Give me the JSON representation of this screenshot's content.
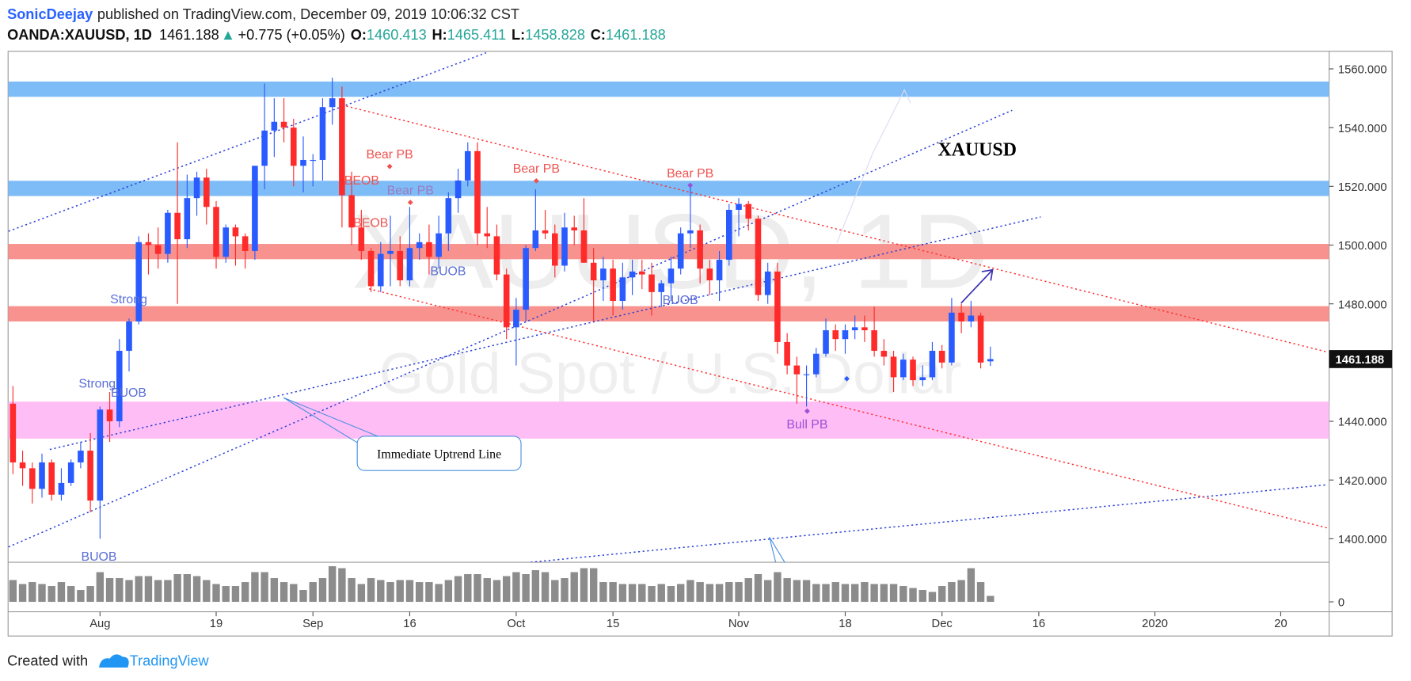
{
  "header": {
    "publisher": "SonicDeejay",
    "published": "published on TradingView.com, December 09, 2019 10:06:32 CST",
    "symbol": "OANDA:XAUUSD, 1D",
    "arrow": "▲",
    "change": "+0.775 (+0.05%)",
    "o": "O:",
    "h": "H:",
    "l": "L:",
    "c": "C:"
  },
  "footer": {
    "created": "Created with",
    "brand": "TradingView"
  },
  "chart_data": {
    "type": "candlestick",
    "watermark": "XAUUSD, 1D",
    "watermark_subtitle": "Gold Spot / U.S. Dollar",
    "up_color": "#2a5bff",
    "down_color": "#ff2a2a",
    "volume_color": "#8c8c8c",
    "open": [
      1446,
      1426,
      1424,
      1417,
      1426,
      1415,
      1419,
      1426,
      1430,
      1413,
      1444,
      1440,
      1464,
      1474,
      1501,
      1500,
      1497,
      1511,
      1502,
      1516,
      1523,
      1513,
      1496,
      1506,
      1503,
      1498,
      1527,
      1539,
      1542,
      1540,
      1527,
      1529,
      1529,
      1547,
      1550,
      1517,
      1506,
      1498,
      1486,
      1497,
      1498,
      1488,
      1499,
      1501,
      1496,
      1504,
      1516,
      1522,
      1532,
      1504,
      1503,
      1490,
      1472,
      1478,
      1499,
      1505,
      1504,
      1493,
      1506,
      1505,
      1494,
      1488,
      1492,
      1481,
      1489,
      1491,
      1490,
      1484,
      1487,
      1492,
      1504,
      1505,
      1492,
      1488,
      1495,
      1512,
      1514,
      1509,
      1483,
      1491,
      1467,
      1459,
      1456,
      1456,
      1463,
      1471,
      1468,
      1471,
      1472,
      1471,
      1464,
      1462,
      1455,
      1461,
      1454,
      1455,
      1464,
      1460,
      1477,
      1474,
      1476,
      1460.413
    ],
    "high": [
      1452,
      1430,
      1426,
      1429,
      1427,
      1424,
      1427,
      1433,
      1436,
      1445,
      1450,
      1468,
      1475,
      1503,
      1504,
      1506,
      1512,
      1535,
      1524,
      1525,
      1526,
      1515,
      1507,
      1507,
      1504,
      1527,
      1555,
      1550,
      1550,
      1543,
      1537,
      1531,
      1550,
      1557,
      1554,
      1525,
      1512,
      1499,
      1501,
      1510,
      1503,
      1513,
      1504,
      1507,
      1510,
      1518,
      1526,
      1535,
      1535,
      1513,
      1507,
      1492,
      1482,
      1500,
      1519,
      1512,
      1507,
      1511,
      1510,
      1516,
      1499,
      1496,
      1495,
      1494,
      1495,
      1495,
      1494,
      1488,
      1496,
      1506,
      1520,
      1507,
      1495,
      1498,
      1514,
      1516,
      1515,
      1510,
      1494,
      1494,
      1470,
      1462,
      1459,
      1465,
      1475,
      1473,
      1473,
      1476,
      1476,
      1479,
      1468,
      1464,
      1463,
      1462,
      1459,
      1467,
      1466,
      1482,
      1480,
      1481,
      1477,
      1465.411
    ],
    "low": [
      1422,
      1418,
      1412,
      1414,
      1413,
      1413,
      1418,
      1424,
      1409,
      1400,
      1433,
      1438,
      1457,
      1473,
      1490,
      1492,
      1494,
      1480,
      1499,
      1510,
      1507,
      1492,
      1494,
      1493,
      1492,
      1495,
      1519,
      1530,
      1535,
      1520,
      1518,
      1520,
      1522,
      1541,
      1506,
      1500,
      1495,
      1484,
      1484,
      1486,
      1486,
      1486,
      1495,
      1490,
      1492,
      1498,
      1511,
      1520,
      1500,
      1499,
      1488,
      1468,
      1459,
      1474,
      1498,
      1502,
      1489,
      1491,
      1500,
      1494,
      1474,
      1481,
      1476,
      1478,
      1483,
      1485,
      1476,
      1479,
      1481,
      1490,
      1499,
      1487,
      1483,
      1481,
      1493,
      1503,
      1505,
      1481,
      1480,
      1463,
      1456,
      1446,
      1445,
      1455,
      1462,
      1464,
      1463,
      1468,
      1467,
      1462,
      1459,
      1450,
      1454,
      1452,
      1452,
      1454,
      1458,
      1459,
      1470,
      1472,
      1458,
      1458.828
    ],
    "close": [
      1426,
      1424,
      1417,
      1426,
      1415,
      1419,
      1426,
      1430,
      1413,
      1444,
      1440,
      1464,
      1474,
      1501,
      1500,
      1497,
      1511,
      1502,
      1516,
      1523,
      1513,
      1496,
      1506,
      1503,
      1498,
      1527,
      1539,
      1542,
      1540,
      1527,
      1529,
      1529,
      1547,
      1550,
      1517,
      1506,
      1498,
      1486,
      1497,
      1498,
      1488,
      1499,
      1501,
      1496,
      1504,
      1516,
      1522,
      1532,
      1504,
      1503,
      1490,
      1472,
      1478,
      1499,
      1505,
      1504,
      1493,
      1506,
      1505,
      1494,
      1488,
      1492,
      1481,
      1489,
      1491,
      1490,
      1484,
      1487,
      1492,
      1504,
      1505,
      1492,
      1488,
      1495,
      1512,
      1514,
      1509,
      1483,
      1491,
      1467,
      1459,
      1456,
      1456,
      1463,
      1471,
      1468,
      1471,
      1472,
      1471,
      1464,
      1462,
      1455,
      1461,
      1454,
      1455,
      1464,
      1460,
      1477,
      1474,
      1476,
      1460,
      1461.188
    ],
    "volume": [
      55,
      45,
      50,
      45,
      40,
      50,
      40,
      30,
      40,
      75,
      60,
      60,
      55,
      65,
      65,
      55,
      55,
      70,
      70,
      65,
      55,
      45,
      40,
      40,
      50,
      75,
      75,
      60,
      50,
      45,
      30,
      50,
      60,
      90,
      85,
      60,
      45,
      60,
      55,
      50,
      55,
      55,
      50,
      50,
      45,
      55,
      65,
      70,
      70,
      60,
      55,
      65,
      75,
      70,
      80,
      75,
      55,
      60,
      75,
      85,
      85,
      50,
      50,
      45,
      45,
      45,
      40,
      45,
      40,
      45,
      55,
      50,
      45,
      45,
      50,
      50,
      60,
      70,
      55,
      75,
      60,
      55,
      55,
      45,
      45,
      50,
      45,
      45,
      50,
      45,
      45,
      45,
      40,
      35,
      30,
      25,
      40,
      50,
      55,
      85,
      50,
      15
    ],
    "xlim": [
      -0.5,
      136
    ],
    "xticks": [
      {
        "value": 9,
        "label": "Aug"
      },
      {
        "value": 21,
        "label": "19"
      },
      {
        "value": 31,
        "label": "Sep"
      },
      {
        "value": 41,
        "label": "16"
      },
      {
        "value": 52,
        "label": "Oct"
      },
      {
        "value": 62,
        "label": "15"
      },
      {
        "value": 75,
        "label": "Nov"
      },
      {
        "value": 86,
        "label": "18"
      },
      {
        "value": 96,
        "label": "Dec"
      },
      {
        "value": 106,
        "label": "16"
      },
      {
        "value": 118,
        "label": "2020"
      },
      {
        "value": 131,
        "label": "20"
      }
    ],
    "ylim": [
      1392,
      1566
    ],
    "yticks": [
      {
        "value": 1400,
        "label": "1400.000"
      },
      {
        "value": 1420,
        "label": "1420.000"
      },
      {
        "value": 1440,
        "label": "1440.000"
      },
      {
        "value": 1460,
        "label": "1460.000"
      },
      {
        "value": 1480,
        "label": "1480.000"
      },
      {
        "value": 1500,
        "label": "1500.000"
      },
      {
        "value": 1520,
        "label": "1520.000"
      },
      {
        "value": 1540,
        "label": "1540.000"
      },
      {
        "value": 1560,
        "label": "1560.000"
      }
    ],
    "volume_lim": [
      0,
      100
    ],
    "volume_ticks": [
      0
    ],
    "zones": [
      {
        "from": 1550.5,
        "to": 1555.7,
        "color": "#7dbcf7"
      },
      {
        "from": 1516.7,
        "to": 1521.9,
        "color": "#7dbcf7"
      },
      {
        "from": 1495.2,
        "to": 1500.4,
        "color": "#f7928e"
      },
      {
        "from": 1474,
        "to": 1479.2,
        "color": "#f7928e"
      },
      {
        "from": 1434.1,
        "to": 1446.7,
        "color": "#ffbdf5"
      }
    ],
    "lines": [
      {
        "x": [
          -0.46,
          48.9
        ],
        "y": [
          1504.7,
          1565.5
        ],
        "color": "#2a3fd6"
      },
      {
        "x": [
          -0.46,
          103.25
        ],
        "y": [
          1397.2,
          1545.9
        ],
        "color": "#2a3fd6"
      },
      {
        "x": [
          3.81,
          106.2
        ],
        "y": [
          1430.4,
          1509.6
        ],
        "color": "#2a3fd6"
      },
      {
        "x": [
          53.5,
          135.8
        ],
        "y": [
          1392,
          1418.4
        ],
        "color": "#2a3fd6"
      },
      {
        "x": [
          34.0,
          135.8
        ],
        "y": [
          1547.7,
          1463.6
        ],
        "color": "#ff3030"
      },
      {
        "x": [
          36.8,
          135.8
        ],
        "y": [
          1485.1,
          1403.7
        ],
        "color": "#ff3030"
      }
    ],
    "annotations": [
      {
        "text": "Strong",
        "color": "#5b6fd6"
      },
      {
        "text": "Strong",
        "color": "#5b6fd6"
      },
      {
        "text": "BUOB",
        "color": "#5b6fd6"
      },
      {
        "text": "BUOB",
        "color": "#5b6fd6"
      },
      {
        "text": "BEOB",
        "color": "#ef5350"
      },
      {
        "text": "BEOB",
        "color": "#ef5350"
      },
      {
        "text": "Bear PB",
        "color": "#ef5350"
      },
      {
        "text": "Bear PB",
        "color": "#9c7bbf"
      },
      {
        "text": "Bear PB",
        "color": "#ef5350"
      },
      {
        "text": "Bear PB",
        "color": "#ef5350"
      },
      {
        "text": "BUOB",
        "color": "#5b6fd6"
      },
      {
        "text": "BUOB",
        "color": "#5b6fd6"
      },
      {
        "text": "Bull PB",
        "color": "#9c4fd6"
      },
      {
        "text": "XAUUSD",
        "color": "#000000"
      }
    ],
    "callout": "Immediate Uptrend Line"
  }
}
